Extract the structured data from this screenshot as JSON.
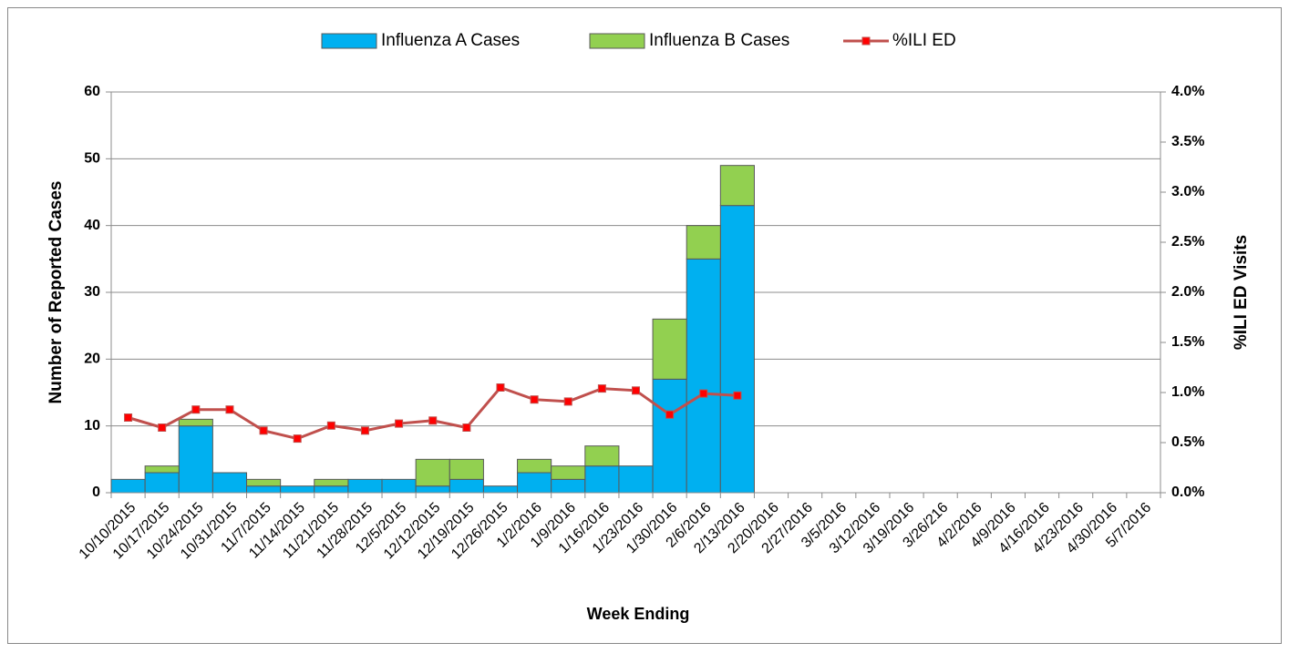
{
  "chart_data": {
    "type": "bar",
    "categories": [
      "10/10/2015",
      "10/17/2015",
      "10/24/2015",
      "10/31/2015",
      "11/7/2015",
      "11/14/2015",
      "11/21/2015",
      "11/28/2015",
      "12/5/2015",
      "12/12/2015",
      "12/19/2015",
      "12/26/2015",
      "1/2/2016",
      "1/9/2016",
      "1/16/2016",
      "1/23/2016",
      "1/30/2016",
      "2/6/2016",
      "2/13/2016",
      "2/20/2016",
      "2/27/2016",
      "3/5/2016",
      "3/12/2016",
      "3/19/2016",
      "3/26/216",
      "4/2/2016",
      "4/9/2016",
      "4/16/2016",
      "4/23/2016",
      "4/30/2016",
      "5/7/2016"
    ],
    "series": [
      {
        "name": "Influenza A Cases",
        "color": "#00b0f0",
        "stacked": true,
        "values": [
          2,
          3,
          10,
          3,
          1,
          1,
          1,
          2,
          2,
          1,
          2,
          1,
          3,
          2,
          4,
          4,
          17,
          35,
          43,
          null,
          null,
          null,
          null,
          null,
          null,
          null,
          null,
          null,
          null,
          null,
          null
        ]
      },
      {
        "name": "Influenza B Cases",
        "color": "#92d050",
        "stacked": true,
        "values": [
          0,
          1,
          1,
          0,
          1,
          0,
          1,
          0,
          0,
          4,
          3,
          0,
          2,
          2,
          3,
          0,
          9,
          5,
          6,
          null,
          null,
          null,
          null,
          null,
          null,
          null,
          null,
          null,
          null,
          null,
          null
        ]
      },
      {
        "name": "%ILI ED",
        "color": "#c0504d",
        "marker_color": "#ff0000",
        "type": "line",
        "axis": "y2",
        "values": [
          0.75,
          0.65,
          0.83,
          0.83,
          0.62,
          0.54,
          0.67,
          0.62,
          0.69,
          0.72,
          0.65,
          1.05,
          0.93,
          0.91,
          1.04,
          1.02,
          0.78,
          0.99,
          0.97,
          null,
          null,
          null,
          null,
          null,
          null,
          null,
          null,
          null,
          null,
          null,
          null
        ]
      }
    ],
    "x_label": "Week Ending",
    "y_label": "Number of Reported Cases",
    "y2_label": "%ILI ED Visits",
    "ylim": [
      0,
      60
    ],
    "yticks": [
      0,
      10,
      20,
      30,
      40,
      50,
      60
    ],
    "y2lim": [
      0,
      4
    ],
    "y2ticks": [
      {
        "value": 0,
        "label": "0.0%"
      },
      {
        "value": 0.5,
        "label": "0.5%"
      },
      {
        "value": 1,
        "label": "1.0%"
      },
      {
        "value": 1.5,
        "label": "1.5%"
      },
      {
        "value": 2,
        "label": "2.0%"
      },
      {
        "value": 2.5,
        "label": "2.5%"
      },
      {
        "value": 3,
        "label": "3.0%"
      },
      {
        "value": 3.5,
        "label": "3.5%"
      },
      {
        "value": 4,
        "label": "4.0%"
      }
    ],
    "grid": true,
    "legend": "top"
  }
}
